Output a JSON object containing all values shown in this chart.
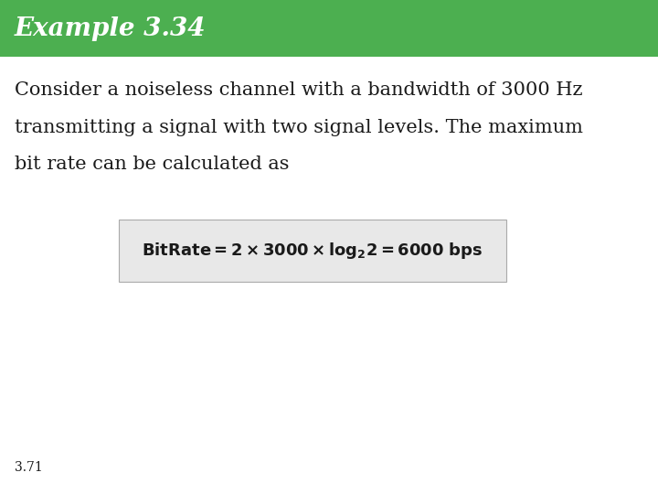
{
  "title": "Example 3.34",
  "title_bg_color": "#4caf50",
  "title_text_color": "#ffffff",
  "title_fontsize": 20,
  "body_text_line1": "Consider a noiseless channel with a bandwidth of 3000 Hz",
  "body_text_line2": "transmitting a signal with two signal levels. The maximum",
  "body_text_line3": "bit rate can be calculated as",
  "body_fontsize": 15,
  "body_text_color": "#1a1a1a",
  "formula_box_color": "#e8e8e8",
  "formula_box_edge": "#aaaaaa",
  "formula_fontsize": 13,
  "footer_text": "3.71",
  "footer_fontsize": 10,
  "bg_color": "#ffffff"
}
